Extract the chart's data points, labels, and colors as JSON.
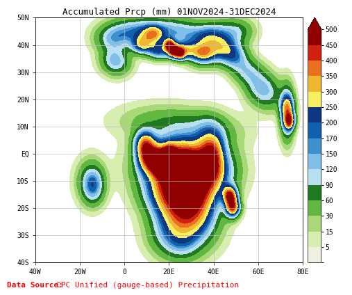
{
  "title": "Accumulated Prcp (mm) 01NOV2024-31DEC2024",
  "title_fontsize": 9,
  "title_color": "#000000",
  "datasource_label": "Data Source:",
  "datasource_label_color": "#ff0000",
  "datasource_text": "CPC Unified (gauge-based) Precipitation",
  "datasource_text_color": "#ff0000",
  "datasource_fontsize": 8,
  "map_extent_lon": [
    -40,
    80
  ],
  "map_extent_lat": [
    -40,
    50
  ],
  "xticks": [
    -40,
    -20,
    0,
    20,
    40,
    60,
    80
  ],
  "xtick_labels": [
    "40W",
    "20W",
    "0",
    "20E",
    "40E",
    "60E",
    "80E"
  ],
  "yticks": [
    -40,
    -30,
    -20,
    -10,
    0,
    10,
    20,
    30,
    40,
    50
  ],
  "ytick_labels": [
    "40S",
    "30S",
    "20S",
    "10S",
    "EQ",
    "10N",
    "20N",
    "30N",
    "40N",
    "50N"
  ],
  "colorbar_levels": [
    0,
    5,
    15,
    30,
    60,
    90,
    120,
    150,
    170,
    200,
    250,
    300,
    350,
    400,
    450,
    500
  ],
  "colorbar_colors": [
    "#ffffff",
    "#f0f0e0",
    "#d8edb0",
    "#a8d878",
    "#60b840",
    "#207820",
    "#b8e0f0",
    "#80c0e8",
    "#4090d0",
    "#1060b0",
    "#103880",
    "#f8f060",
    "#f0b830",
    "#e87020",
    "#d02010",
    "#900000"
  ],
  "grid_color": "#bbbbbb",
  "grid_linewidth": 0.5,
  "grid_linestyle": "-",
  "background_color": "#ffffff",
  "border_color": "#000000",
  "border_linewidth": 0.4,
  "font_family": "monospace"
}
